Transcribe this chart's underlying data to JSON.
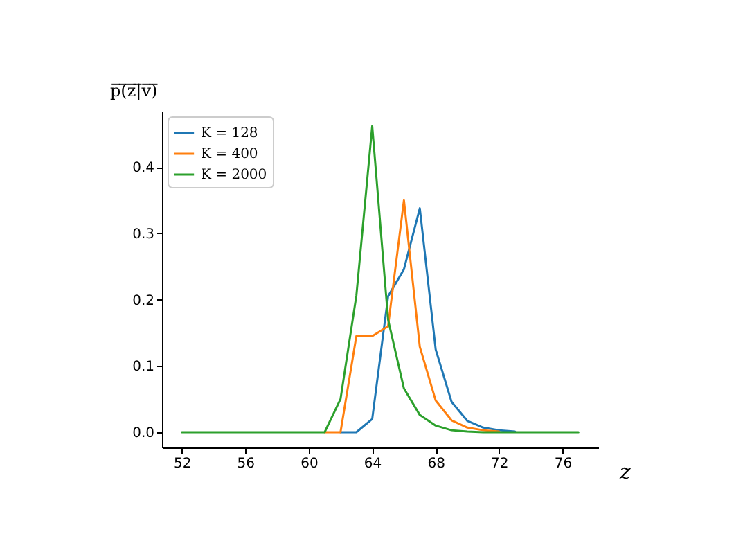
{
  "chart_data": {
    "type": "line",
    "xlabel": "z",
    "ylabel": "p̅(̅z̅|̅v̅)̅",
    "x": [
      52,
      53,
      54,
      55,
      56,
      57,
      58,
      59,
      60,
      61,
      62,
      63,
      64,
      65,
      66,
      67,
      68,
      69,
      70,
      71,
      72,
      73,
      74,
      75,
      76,
      77
    ],
    "series": [
      {
        "name": "K = 128",
        "color": "#1f77b4",
        "values": [
          null,
          null,
          null,
          null,
          null,
          null,
          null,
          null,
          null,
          null,
          0,
          0,
          0.02,
          0.205,
          0.246,
          0.338,
          0.125,
          0.046,
          0.017,
          0.007,
          0.003,
          0.001,
          null,
          null,
          null,
          null
        ]
      },
      {
        "name": "K = 400",
        "color": "#ff7f0e",
        "values": [
          null,
          null,
          null,
          null,
          null,
          null,
          null,
          null,
          null,
          0,
          0,
          0.145,
          0.145,
          0.16,
          0.35,
          0.129,
          0.048,
          0.018,
          0.007,
          0.003,
          0.001,
          null,
          null,
          null,
          null,
          null
        ]
      },
      {
        "name": "K = 2000",
        "color": "#2ca02c",
        "values": [
          0,
          0,
          0,
          0,
          0,
          0,
          0,
          0,
          0,
          0,
          0.05,
          0.206,
          0.462,
          0.17,
          0.066,
          0.026,
          0.01,
          0.003,
          0.001,
          0,
          0,
          0,
          0,
          0,
          0,
          0
        ]
      }
    ],
    "xlim": [
      50.75,
      78.25
    ],
    "xticks": [
      52,
      56,
      60,
      64,
      68,
      72,
      76
    ],
    "ylim": [
      -0.023,
      0.485
    ],
    "yticks": [
      {
        "value": 0,
        "label": "0.0"
      },
      0.1,
      0.2,
      0.3,
      0.4
    ],
    "grid": false,
    "legend": "top left",
    "marker": "none",
    "line_style": "solid"
  }
}
